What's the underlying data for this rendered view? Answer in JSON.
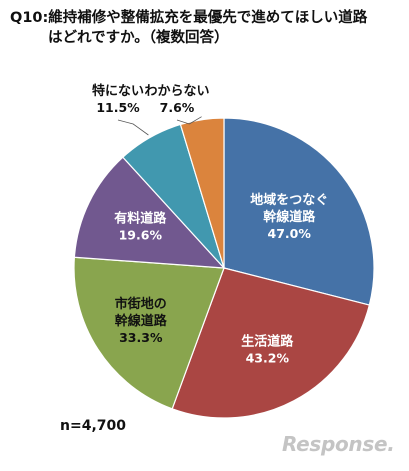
{
  "title": {
    "line1": "Q10:維持補修や整備拡充を最優先で進めてほしい道路",
    "line2": "はどれですか。（複数回答）"
  },
  "sample_size": "n=4,700",
  "watermark": "Response.",
  "chart_data": {
    "type": "pie",
    "title": "Q10:維持補修や整備拡充を最優先で進めてほしい道路はどれですか。（複数回答）",
    "note": "n=4,700",
    "start_angle_deg": 0,
    "direction": "clockwise",
    "slices": [
      {
        "label_lines": [
          "地域をつなぐ",
          "幹線道路"
        ],
        "value": 47.0,
        "value_text": "47.0%",
        "color": "#4572a7",
        "label_color": "#ffffff"
      },
      {
        "label_lines": [
          "生活道路"
        ],
        "value": 43.2,
        "value_text": "43.2%",
        "color": "#aa4643",
        "label_color": "#ffffff"
      },
      {
        "label_lines": [
          "市街地の",
          "幹線道路"
        ],
        "value": 33.3,
        "value_text": "33.3%",
        "color": "#89a54e",
        "label_color": "#111111"
      },
      {
        "label_lines": [
          "有料道路"
        ],
        "value": 19.6,
        "value_text": "19.6%",
        "color": "#71588f",
        "label_color": "#ffffff"
      },
      {
        "label_lines": [
          "特にない"
        ],
        "value": 11.5,
        "value_text": "11.5%",
        "color": "#4198af",
        "label_color": "#111111",
        "label_outside": true
      },
      {
        "label_lines": [
          "わからない"
        ],
        "value": 7.6,
        "value_text": "7.6%",
        "color": "#db843d",
        "label_color": "#111111",
        "label_outside": true
      }
    ]
  }
}
